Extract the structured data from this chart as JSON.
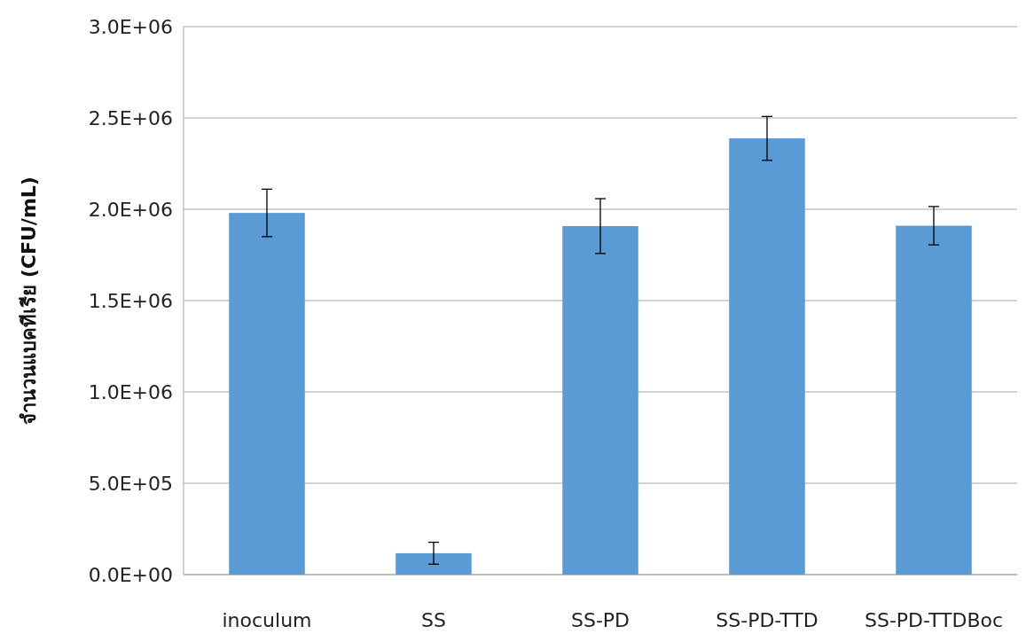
{
  "chart_data": {
    "type": "bar",
    "ylabel": "จำนวนแบคทีเรีย (CFU/mL)",
    "categories": [
      "inoculum",
      "SS",
      "SS-PD",
      "SS-PD-TTD",
      "SS-PD-TTDBoc"
    ],
    "values": [
      1980000,
      117000,
      1908000,
      2388000,
      1910000
    ],
    "errors": [
      130000,
      60000,
      150000,
      120000,
      105000
    ],
    "color": "#5b9bd5",
    "ylim": [
      0,
      3000000
    ],
    "yticks": [
      {
        "value": 0,
        "label": "0.0E+00"
      },
      {
        "value": 500000,
        "label": "5.0E+05"
      },
      {
        "value": 1000000,
        "label": "1.0E+06"
      },
      {
        "value": 1500000,
        "label": "1.5E+06"
      },
      {
        "value": 2000000,
        "label": "2.0E+06"
      },
      {
        "value": 2500000,
        "label": "2.5E+06"
      },
      {
        "value": 3000000,
        "label": "3.0E+06"
      }
    ],
    "grid": "y"
  }
}
